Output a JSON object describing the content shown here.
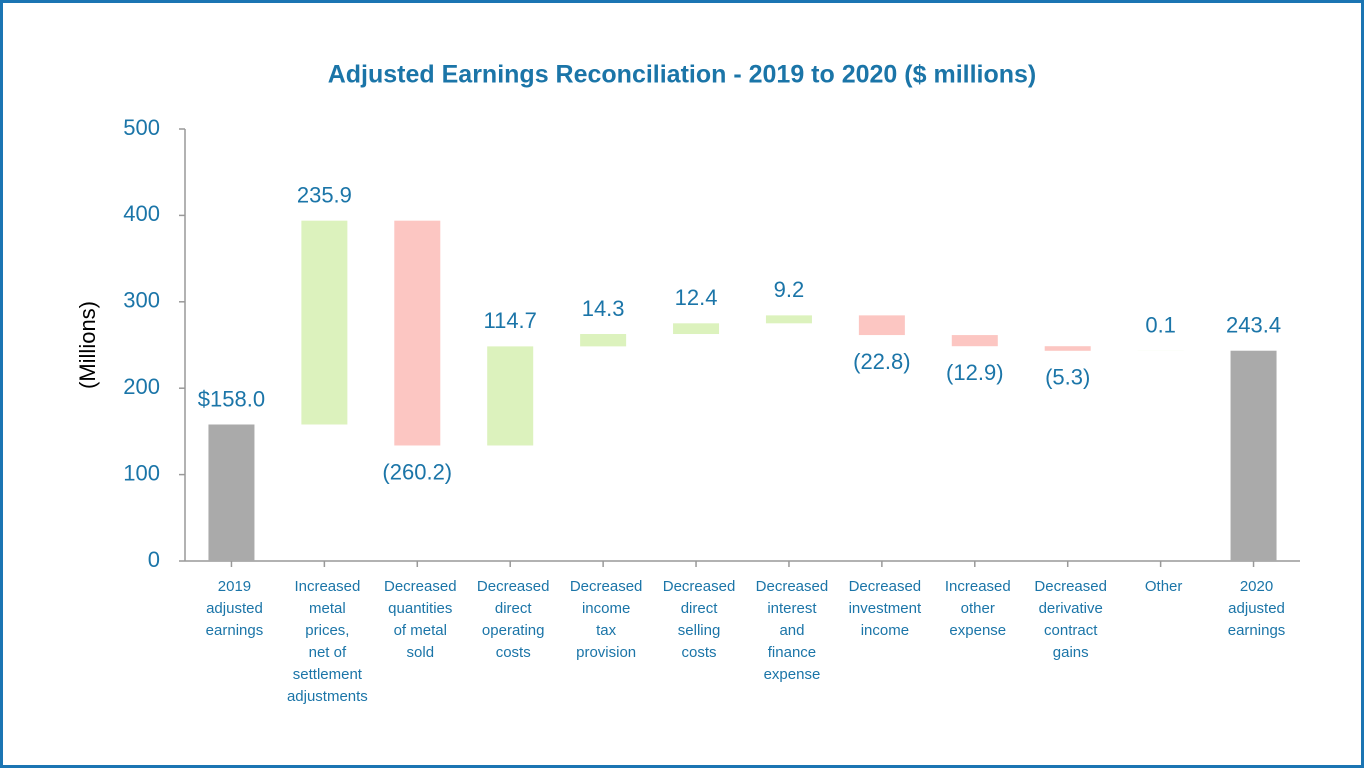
{
  "chart_data": {
    "type": "waterfall",
    "title": "Adjusted Earnings Reconciliation - 2019 to 2020 ($ millions)",
    "y_label": "(Millions)",
    "categories": [
      "2019\nadjusted\nearnings",
      "Increased\nmetal\nprices,\nnet of\nsettlement\nadjustments",
      "Decreased\nquantities\nof metal\nsold",
      "Decreased\ndirect\noperating\ncosts",
      "Decreased\nincome\ntax\nprovision",
      "Decreased\ndirect\nselling\ncosts",
      "Decreased\ninterest\nand\nfinance\nexpense",
      "Decreased\ninvestment\nincome",
      "Increased\nother\nexpense",
      "Decreased\nderivative\ncontract\ngains",
      "Other",
      "2020\nadjusted\nearnings"
    ],
    "measure": [
      "total",
      "relative",
      "relative",
      "relative",
      "relative",
      "relative",
      "relative",
      "relative",
      "relative",
      "relative",
      "relative",
      "total"
    ],
    "values": [
      158.0,
      235.9,
      -260.2,
      114.7,
      14.3,
      12.4,
      9.2,
      -22.8,
      -12.9,
      -5.3,
      0.1,
      243.4
    ],
    "value_labels": [
      "$158.0",
      "235.9",
      "(260.2)",
      "114.7",
      "14.3",
      "12.4",
      "9.2",
      "(22.8)",
      "(12.9)",
      "(5.3)",
      "0.1",
      "243.4"
    ],
    "total_color": "#aaaaaa",
    "increase_color": "#dcf2bd",
    "decrease_color": "#fcc6c2",
    "ylim": [
      0,
      500
    ],
    "yticks": [
      0,
      100,
      200,
      300,
      400,
      500
    ]
  }
}
